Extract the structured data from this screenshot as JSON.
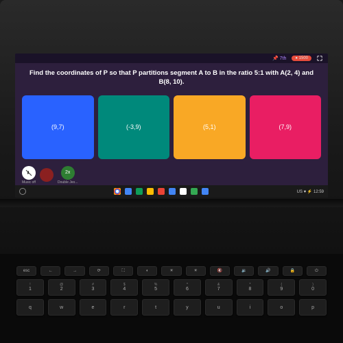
{
  "topbar": {
    "pin_label": "7th",
    "score": "1500",
    "pin_icon": "📌"
  },
  "quiz": {
    "question": "Find the coordinates of P so that P partitions segment A to B in the ratio 5:1 with A(2, 4) and B(8, 10).",
    "answers": [
      {
        "label": "(9,7)",
        "color": "#2962ff"
      },
      {
        "label": "(-3,9)",
        "color": "#00897b"
      },
      {
        "label": "(5,1)",
        "color": "#f9a825"
      },
      {
        "label": "(7,9)",
        "color": "#e91e63"
      }
    ]
  },
  "controls": {
    "music": {
      "icon": "🎵",
      "label": "Music off"
    },
    "stop": {
      "icon": "",
      "label": ""
    },
    "double": {
      "icon": "2x",
      "label": "Double Jeo..."
    }
  },
  "taskbar": {
    "icons": [
      {
        "name": "chrome-icon",
        "color": "#ffffff"
      },
      {
        "name": "app-icon-1",
        "color": "#4285f4"
      },
      {
        "name": "app-icon-2",
        "color": "#0f9d58"
      },
      {
        "name": "app-icon-3",
        "color": "#fbbc04"
      },
      {
        "name": "app-icon-4",
        "color": "#ea4335"
      },
      {
        "name": "app-icon-5",
        "color": "#4285f4"
      },
      {
        "name": "app-icon-6",
        "color": "#ffffff"
      },
      {
        "name": "app-icon-7",
        "color": "#34a853"
      },
      {
        "name": "app-icon-8",
        "color": "#4285f4"
      }
    ],
    "status": "US ♥ ⚡ 12:59"
  },
  "keyboard": {
    "frow": [
      "esc",
      "←",
      "→",
      "⟳",
      "⛶",
      "◐",
      "☀",
      "☀",
      "🔇",
      "🔉",
      "🔊",
      "🔒",
      "⏻"
    ],
    "nrow": [
      {
        "top": "!",
        "bot": "1"
      },
      {
        "top": "@",
        "bot": "2"
      },
      {
        "top": "#",
        "bot": "3"
      },
      {
        "top": "$",
        "bot": "4"
      },
      {
        "top": "%",
        "bot": "5"
      },
      {
        "top": "^",
        "bot": "6"
      },
      {
        "top": "&",
        "bot": "7"
      },
      {
        "top": "*",
        "bot": "8"
      },
      {
        "top": "(",
        "bot": "9"
      },
      {
        "top": ")",
        "bot": "0"
      }
    ],
    "lrow": [
      "q",
      "w",
      "e",
      "r",
      "t",
      "y",
      "u",
      "i",
      "o",
      "p"
    ]
  },
  "colors": {
    "quiz_bg": "#2d1f3d",
    "topbar_bg": "#1a1228"
  }
}
